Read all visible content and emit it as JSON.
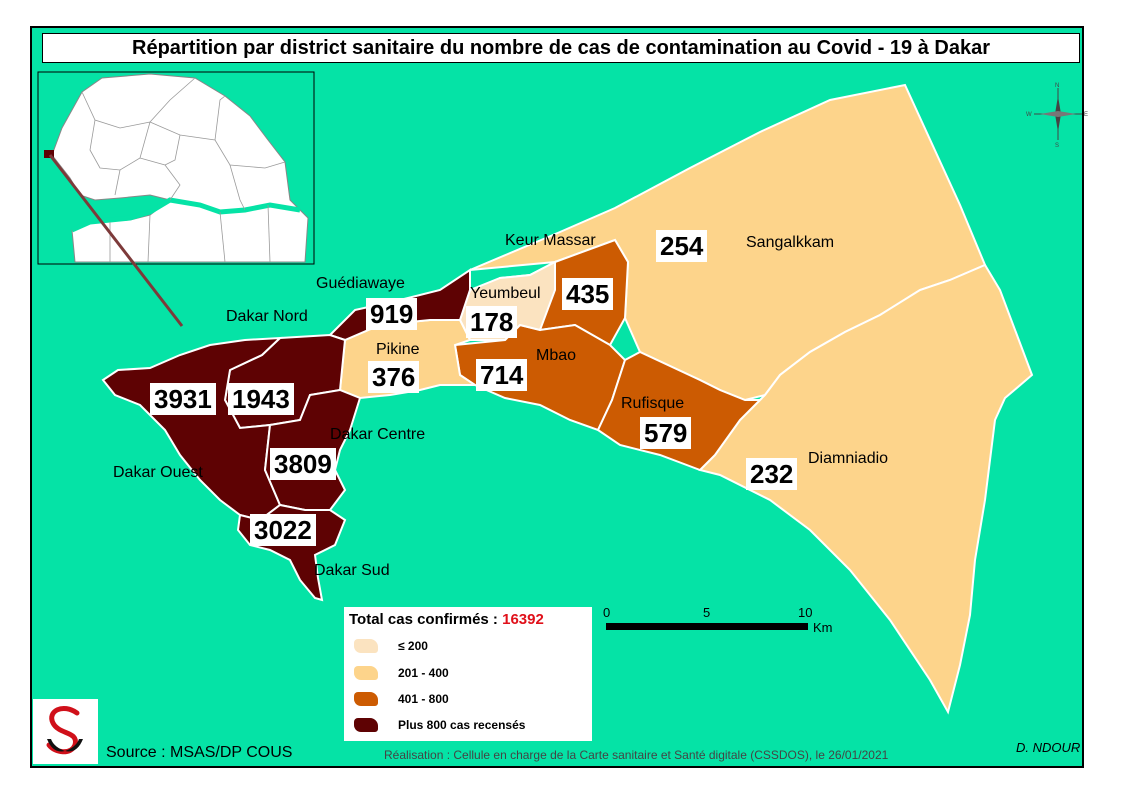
{
  "title": "Répartition par district sanitaire du nombre de cas de contamination au Covid - 19 à Dakar",
  "colors": {
    "sea": "#05e3a6",
    "cat_le_200": "#fbe3c0",
    "cat_201_400": "#fdd48b",
    "cat_401_800": "#cc5b02",
    "cat_gt_800": "#5e0203"
  },
  "districts": [
    {
      "name": "Dakar Ouest",
      "cases": "3931"
    },
    {
      "name": "Dakar Nord",
      "cases": "1943"
    },
    {
      "name": "Dakar Centre",
      "cases": "3809"
    },
    {
      "name": "Dakar Sud",
      "cases": "3022"
    },
    {
      "name": "Guédiawaye",
      "cases": "919"
    },
    {
      "name": "Pikine",
      "cases": "376"
    },
    {
      "name": "Yeumbeul",
      "cases": "178"
    },
    {
      "name": "Keur Massar",
      "cases": "435"
    },
    {
      "name": "Mbao",
      "cases": "714"
    },
    {
      "name": "Rufisque",
      "cases": "579"
    },
    {
      "name": "Sangalkkam",
      "cases": "254"
    },
    {
      "name": "Diamniadio",
      "cases": "232"
    }
  ],
  "legend": {
    "title": "Total cas confirmés :",
    "total": "16392",
    "items": [
      {
        "label": "≤ 200",
        "color": "#fbe3c0"
      },
      {
        "label": "201 - 400",
        "color": "#fdd48b"
      },
      {
        "label": "401 - 800",
        "color": "#cc5b02"
      },
      {
        "label": "Plus 800 cas recensés",
        "color": "#5e0203"
      }
    ]
  },
  "scale": {
    "ticks": [
      "0",
      "5",
      "10"
    ],
    "unit": "Km"
  },
  "source": "Source : MSAS/DP COUS",
  "realisation": "Réalisation : Cellule en charge de la Carte sanitaire et Santé digitale (CSSDOS), le 26/01/2021",
  "author": "D. NDOUR",
  "compass_icon": "north-arrow-icon",
  "logo_icon": "msas-logo-icon"
}
